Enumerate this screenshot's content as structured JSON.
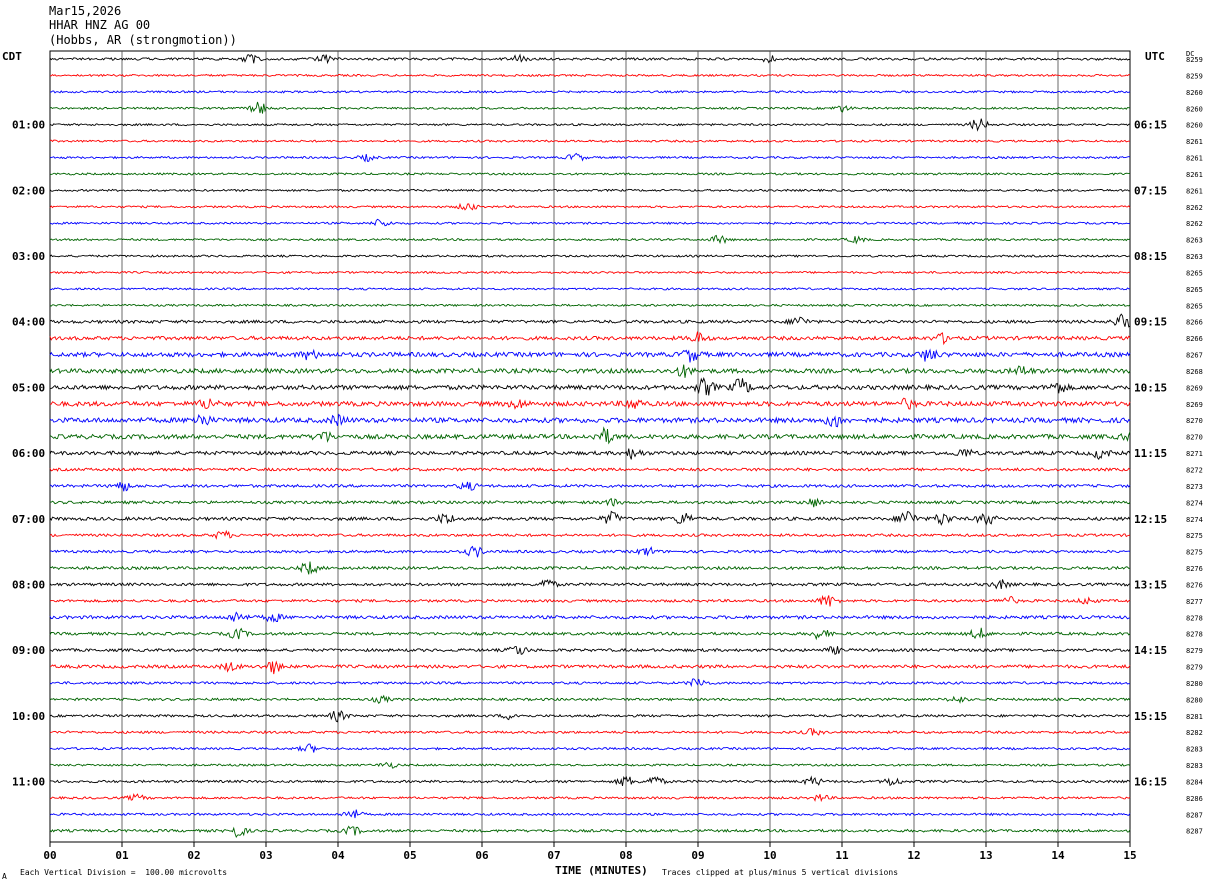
{
  "header": {
    "date": "Mar15,2026",
    "station": "HHAR HNZ AG 00",
    "location": "(Hobbs, AR (strongmotion))"
  },
  "left_zone_label": "CDT",
  "right_zone_label": "UTC",
  "dc_label": "DC",
  "footer": {
    "scale_note": "Each Vertical Division =  100.00 microvolts",
    "clip_note": "Traces clipped at plus/minus 5 vertical divisions",
    "corner_mark": "A"
  },
  "colors": [
    "#000000",
    "#ff0000",
    "#0000ff",
    "#006400"
  ],
  "chart_data": {
    "type": "line",
    "xlabel": "TIME (MINUTES)",
    "x_ticks": [
      "00",
      "01",
      "02",
      "03",
      "04",
      "05",
      "06",
      "07",
      "08",
      "09",
      "10",
      "11",
      "12",
      "13",
      "14",
      "15"
    ],
    "xlim": [
      0,
      15
    ],
    "trace_count": 48,
    "left_time_labels": [
      "01:00",
      "02:00",
      "03:00",
      "04:00",
      "05:00",
      "06:00",
      "07:00",
      "08:00",
      "09:00",
      "10:00",
      "11:00"
    ],
    "right_time_labels": [
      "06:15",
      "07:15",
      "08:15",
      "09:15",
      "10:15",
      "11:15",
      "12:15",
      "13:15",
      "14:15",
      "15:15",
      "16:15"
    ],
    "dc_offsets": [
      "8259",
      "8259",
      "8260",
      "8260",
      "8260",
      "8261",
      "8261",
      "8261",
      "8261",
      "8262",
      "8262",
      "8263",
      "8263",
      "8265",
      "8265",
      "8265",
      "8266",
      "8266",
      "8267",
      "8268",
      "8269",
      "8269",
      "8270",
      "8270",
      "8271",
      "8272",
      "8273",
      "8274",
      "8274",
      "8275",
      "8275",
      "8276",
      "8276",
      "8277",
      "8278",
      "8278",
      "8279",
      "8279",
      "8280",
      "8280",
      "8281",
      "8282",
      "8283",
      "8283",
      "8284",
      "8286",
      "8287",
      "8287"
    ],
    "noise_levels": [
      1.2,
      1.0,
      1.0,
      1.0,
      1.0,
      1.0,
      1.0,
      1.0,
      1.0,
      1.0,
      1.0,
      1.0,
      1.0,
      1.0,
      1.0,
      1.0,
      1.5,
      1.8,
      2.2,
      2.2,
      2.2,
      2.3,
      2.4,
      2.2,
      1.8,
      1.4,
      1.4,
      1.4,
      1.6,
      1.3,
      1.3,
      1.4,
      1.4,
      1.3,
      1.6,
      1.4,
      1.4,
      1.6,
      1.2,
      1.2,
      1.2,
      1.2,
      1.1,
      1.0,
      1.2,
      1.1,
      1.1,
      1.3
    ],
    "events": [
      {
        "trace": 0,
        "minute": 2.8,
        "amp": 4
      },
      {
        "trace": 0,
        "minute": 3.8,
        "amp": 4
      },
      {
        "trace": 0,
        "minute": 6.5,
        "amp": 3
      },
      {
        "trace": 0,
        "minute": 10.0,
        "amp": 3
      },
      {
        "trace": 3,
        "minute": 2.9,
        "amp": 6
      },
      {
        "trace": 3,
        "minute": 11.0,
        "amp": 3
      },
      {
        "trace": 4,
        "minute": 12.9,
        "amp": 6
      },
      {
        "trace": 6,
        "minute": 4.4,
        "amp": 3
      },
      {
        "trace": 6,
        "minute": 7.3,
        "amp": 4
      },
      {
        "trace": 9,
        "minute": 5.8,
        "amp": 4
      },
      {
        "trace": 10,
        "minute": 4.6,
        "amp": 4
      },
      {
        "trace": 11,
        "minute": 9.3,
        "amp": 4
      },
      {
        "trace": 11,
        "minute": 11.2,
        "amp": 3
      },
      {
        "trace": 16,
        "minute": 10.4,
        "amp": 5
      },
      {
        "trace": 16,
        "minute": 14.9,
        "amp": 7
      },
      {
        "trace": 17,
        "minute": 9.0,
        "amp": 5
      },
      {
        "trace": 17,
        "minute": 12.4,
        "amp": 4
      },
      {
        "trace": 18,
        "minute": 8.9,
        "amp": 6
      },
      {
        "trace": 18,
        "minute": 12.2,
        "amp": 6
      },
      {
        "trace": 18,
        "minute": 3.6,
        "amp": 4
      },
      {
        "trace": 19,
        "minute": 8.8,
        "amp": 5
      },
      {
        "trace": 19,
        "minute": 13.5,
        "amp": 4
      },
      {
        "trace": 20,
        "minute": 9.1,
        "amp": 8
      },
      {
        "trace": 20,
        "minute": 9.6,
        "amp": 8
      },
      {
        "trace": 20,
        "minute": 14.0,
        "amp": 5
      },
      {
        "trace": 21,
        "minute": 6.5,
        "amp": 4
      },
      {
        "trace": 21,
        "minute": 2.2,
        "amp": 5
      },
      {
        "trace": 21,
        "minute": 8.1,
        "amp": 5
      },
      {
        "trace": 21,
        "minute": 11.9,
        "amp": 4
      },
      {
        "trace": 22,
        "minute": 2.1,
        "amp": 6
      },
      {
        "trace": 22,
        "minute": 10.9,
        "amp": 6
      },
      {
        "trace": 22,
        "minute": 4.0,
        "amp": 4
      },
      {
        "trace": 23,
        "minute": 3.8,
        "amp": 5
      },
      {
        "trace": 23,
        "minute": 7.7,
        "amp": 7
      },
      {
        "trace": 23,
        "minute": 15.0,
        "amp": 4
      },
      {
        "trace": 24,
        "minute": 8.1,
        "amp": 5
      },
      {
        "trace": 24,
        "minute": 14.6,
        "amp": 5
      },
      {
        "trace": 24,
        "minute": 12.7,
        "amp": 4
      },
      {
        "trace": 26,
        "minute": 1.0,
        "amp": 5
      },
      {
        "trace": 26,
        "minute": 5.8,
        "amp": 4
      },
      {
        "trace": 27,
        "minute": 10.6,
        "amp": 4
      },
      {
        "trace": 27,
        "minute": 7.8,
        "amp": 3
      },
      {
        "trace": 28,
        "minute": 7.8,
        "amp": 6
      },
      {
        "trace": 28,
        "minute": 8.8,
        "amp": 6
      },
      {
        "trace": 28,
        "minute": 11.9,
        "amp": 9
      },
      {
        "trace": 28,
        "minute": 12.4,
        "amp": 6
      },
      {
        "trace": 28,
        "minute": 5.5,
        "amp": 5
      },
      {
        "trace": 28,
        "minute": 13.0,
        "amp": 6
      },
      {
        "trace": 29,
        "minute": 2.4,
        "amp": 4
      },
      {
        "trace": 30,
        "minute": 5.9,
        "amp": 5
      },
      {
        "trace": 30,
        "minute": 8.3,
        "amp": 4
      },
      {
        "trace": 31,
        "minute": 3.6,
        "amp": 6
      },
      {
        "trace": 32,
        "minute": 6.9,
        "amp": 5
      },
      {
        "trace": 32,
        "minute": 13.2,
        "amp": 4
      },
      {
        "trace": 33,
        "minute": 10.8,
        "amp": 6
      },
      {
        "trace": 33,
        "minute": 13.3,
        "amp": 4
      },
      {
        "trace": 33,
        "minute": 14.4,
        "amp": 3
      },
      {
        "trace": 34,
        "minute": 2.6,
        "amp": 5
      },
      {
        "trace": 34,
        "minute": 3.1,
        "amp": 4
      },
      {
        "trace": 35,
        "minute": 2.6,
        "amp": 5
      },
      {
        "trace": 35,
        "minute": 10.7,
        "amp": 5
      },
      {
        "trace": 35,
        "minute": 12.9,
        "amp": 5
      },
      {
        "trace": 36,
        "minute": 6.5,
        "amp": 5
      },
      {
        "trace": 36,
        "minute": 10.9,
        "amp": 3
      },
      {
        "trace": 37,
        "minute": 3.1,
        "amp": 6
      },
      {
        "trace": 37,
        "minute": 2.5,
        "amp": 4
      },
      {
        "trace": 38,
        "minute": 9.0,
        "amp": 5
      },
      {
        "trace": 39,
        "minute": 4.6,
        "amp": 3
      },
      {
        "trace": 39,
        "minute": 12.6,
        "amp": 3
      },
      {
        "trace": 40,
        "minute": 4.0,
        "amp": 5
      },
      {
        "trace": 40,
        "minute": 6.4,
        "amp": 3
      },
      {
        "trace": 41,
        "minute": 10.6,
        "amp": 3
      },
      {
        "trace": 42,
        "minute": 3.6,
        "amp": 4
      },
      {
        "trace": 43,
        "minute": 4.7,
        "amp": 3
      },
      {
        "trace": 44,
        "minute": 8.0,
        "amp": 5
      },
      {
        "trace": 44,
        "minute": 8.4,
        "amp": 5
      },
      {
        "trace": 44,
        "minute": 10.6,
        "amp": 4
      },
      {
        "trace": 44,
        "minute": 11.7,
        "amp": 4
      },
      {
        "trace": 45,
        "minute": 1.2,
        "amp": 3
      },
      {
        "trace": 45,
        "minute": 10.7,
        "amp": 3
      },
      {
        "trace": 46,
        "minute": 4.2,
        "amp": 5
      },
      {
        "trace": 47,
        "minute": 2.6,
        "amp": 6
      },
      {
        "trace": 47,
        "minute": 4.2,
        "amp": 4
      }
    ]
  }
}
